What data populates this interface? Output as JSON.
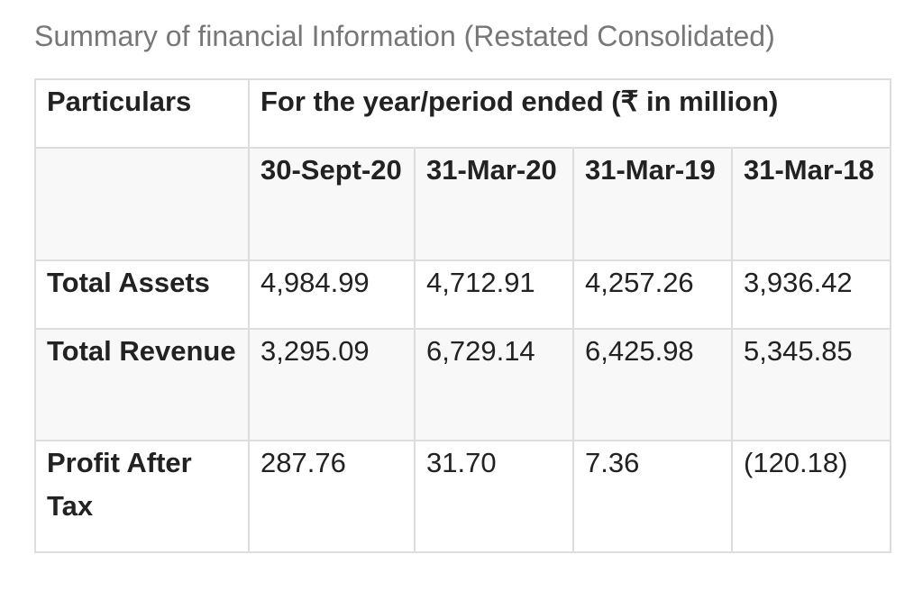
{
  "caption": "Summary of financial Information (Restated Consolidated)",
  "table": {
    "header": {
      "particulars": "Particulars",
      "period": "For the year/period ended (₹ in million)"
    },
    "periods": [
      "30-Sept-20",
      "31-Mar-20",
      "31-Mar-19",
      "31-Mar-18"
    ],
    "rows": [
      {
        "label": "Total Assets",
        "values": [
          "4,984.99",
          "4,712.91",
          "4,257.26",
          "3,936.42"
        ]
      },
      {
        "label": "Total Revenue",
        "values": [
          "3,295.09",
          "6,729.14",
          "6,425.98",
          "5,345.85"
        ]
      },
      {
        "label": "Profit After Tax",
        "values": [
          "287.76",
          "31.70",
          "7.36",
          "(120.18)"
        ]
      }
    ]
  }
}
